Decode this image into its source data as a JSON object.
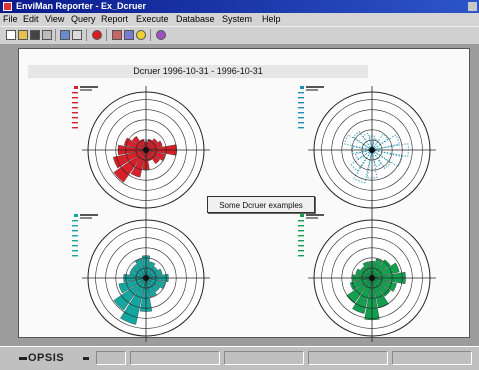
{
  "window": {
    "title": "EnviMan Reporter - Ex_Dcruer",
    "header_text": "Dcruer    1996-10-31 - 1996-10-31",
    "tooltip": "Some Dcruer examples",
    "logo": "OPSIS"
  },
  "menu": [
    "File",
    "Edit",
    "View",
    "Query",
    "Report",
    "Execute",
    "Database",
    "System",
    "Help"
  ],
  "toolbar": [
    "new-icon",
    "open-icon",
    "save-icon",
    "print-icon",
    "chart-icon",
    "table-icon",
    "heart-icon",
    "copy-icon",
    "paste-icon",
    "bulb-icon",
    "palette-icon"
  ],
  "colors": {
    "red": "#d8202a",
    "blue": "#1f8fb4",
    "teal": "#15a6a0",
    "green": "#12a050",
    "title_bar": "#0a1a8c"
  },
  "plots": [
    {
      "name": "windrose-red",
      "color": "#d8202a",
      "style": "filled",
      "petals": [
        0.15,
        0.2,
        0.25,
        0.3,
        0.55,
        0.35,
        0.3,
        0.2,
        0.35,
        0.5,
        0.7,
        0.6,
        0.5,
        0.4,
        0.3,
        0.2
      ]
    },
    {
      "name": "windrose-blue",
      "color": "#1f8fb4",
      "style": "dashed",
      "petals": [
        0.25,
        0.2,
        0.35,
        0.5,
        0.65,
        0.55,
        0.4,
        0.3,
        0.5,
        0.6,
        0.45,
        0.3,
        0.35,
        0.5,
        0.4,
        0.3
      ]
    },
    {
      "name": "windrose-teal",
      "color": "#15a6a0",
      "style": "filled",
      "petals": [
        0.4,
        0.3,
        0.25,
        0.3,
        0.4,
        0.35,
        0.3,
        0.35,
        0.6,
        0.85,
        0.7,
        0.5,
        0.4,
        0.3,
        0.3,
        0.35
      ]
    },
    {
      "name": "windrose-green",
      "color": "#12a050",
      "style": "filled",
      "petals": [
        0.3,
        0.35,
        0.4,
        0.5,
        0.6,
        0.45,
        0.4,
        0.55,
        0.75,
        0.65,
        0.55,
        0.4,
        0.35,
        0.3,
        0.25,
        0.3
      ]
    }
  ]
}
